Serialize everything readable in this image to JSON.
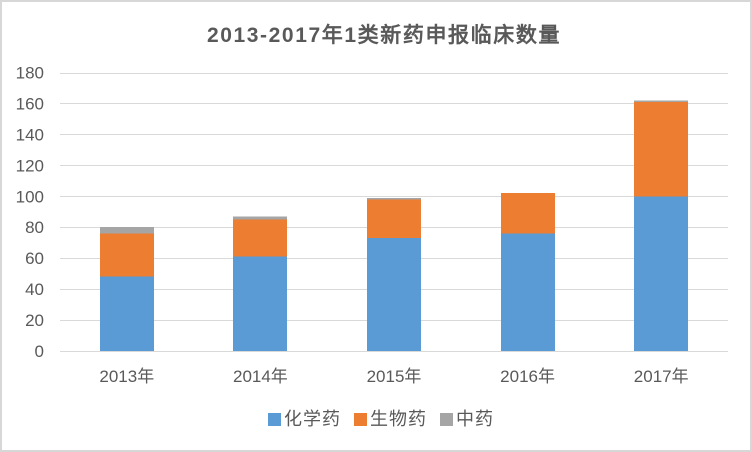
{
  "chart_data": {
    "type": "bar",
    "stacked": true,
    "title": "2013-2017年1类新药申报临床数量",
    "categories": [
      "2013年",
      "2014年",
      "2015年",
      "2016年",
      "2017年"
    ],
    "series": [
      {
        "name": "化学药",
        "color": "#5b9bd5",
        "values": [
          48,
          61,
          73,
          76,
          100
        ]
      },
      {
        "name": "生物药",
        "color": "#ed7d31",
        "values": [
          28,
          24,
          25,
          26,
          61
        ]
      },
      {
        "name": "中药",
        "color": "#a5a5a5",
        "values": [
          4,
          2,
          1,
          0,
          1
        ]
      }
    ],
    "totals": [
      80,
      87,
      99,
      102,
      162
    ],
    "xlabel": "",
    "ylabel": "",
    "ylim": [
      0,
      180
    ],
    "ytick_step": 20,
    "ytick_labels": [
      "0",
      "20",
      "40",
      "60",
      "80",
      "100",
      "120",
      "140",
      "160",
      "180"
    ],
    "grid": true,
    "gridline_color": "#d9d9d9",
    "axis_text_color": "#595959",
    "title_color": "#595959",
    "legend_position": "bottom",
    "background_color": "#ffffff",
    "border_color": "#d7d7d7"
  }
}
